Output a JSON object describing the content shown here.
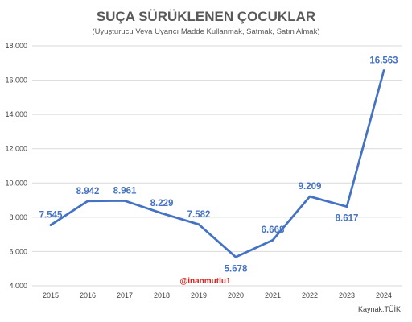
{
  "chart_data": {
    "type": "line",
    "title": "SUÇA SÜRÜKLENEN ÇOCUKLAR",
    "subtitle": "(Uyuşturucu Veya Uyarıcı Madde Kullanmak, Satmak, Satın Almak)",
    "categories": [
      "2015",
      "2016",
      "2017",
      "2018",
      "2019",
      "2020",
      "2021",
      "2022",
      "2023",
      "2024"
    ],
    "values": [
      7545,
      8942,
      8961,
      8229,
      7582,
      5678,
      6668,
      9209,
      8617,
      16563
    ],
    "data_labels": [
      "7.545",
      "8.942",
      "8.961",
      "8.229",
      "7.582",
      "5.678",
      "6.668",
      "9.209",
      "8.617",
      "16.563"
    ],
    "y_ticks": [
      4000,
      6000,
      8000,
      10000,
      12000,
      14000,
      16000,
      18000
    ],
    "y_tick_labels": [
      "4.000",
      "6.000",
      "8.000",
      "10.000",
      "12.000",
      "14.000",
      "16.000",
      "18.000"
    ],
    "ylim": [
      4000,
      18000
    ],
    "grid": true,
    "line_color": "#4472C4",
    "xlabel": "",
    "ylabel": ""
  },
  "watermark": "@inanmutlu1",
  "source": "Kaynak:TÜİK"
}
